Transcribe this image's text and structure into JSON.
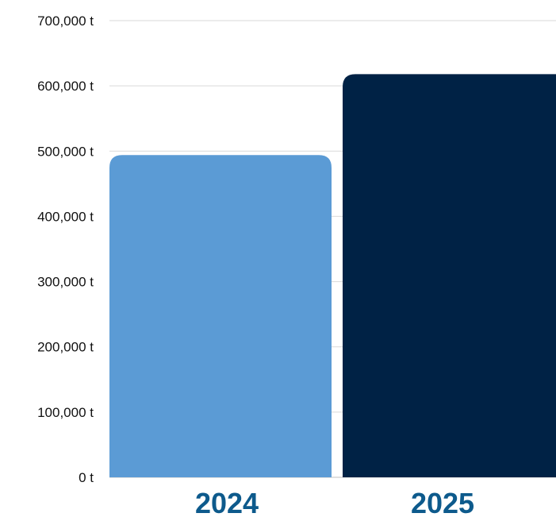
{
  "chart_data": {
    "type": "bar",
    "categories": [
      "2024",
      "2025"
    ],
    "values": [
      494000,
      618000
    ],
    "y_ticks": [
      "0 t",
      "100,000 t",
      "200,000 t",
      "300,000 t",
      "400,000 t",
      "500,000 t",
      "600,000 t",
      "700,000 t"
    ],
    "ylim": [
      0,
      700000
    ],
    "grid": true,
    "colors": [
      "#5b9bd5",
      "#002245"
    ],
    "category_label_color": "#0d5a8c",
    "gridline_color": "#d9d9d9"
  }
}
